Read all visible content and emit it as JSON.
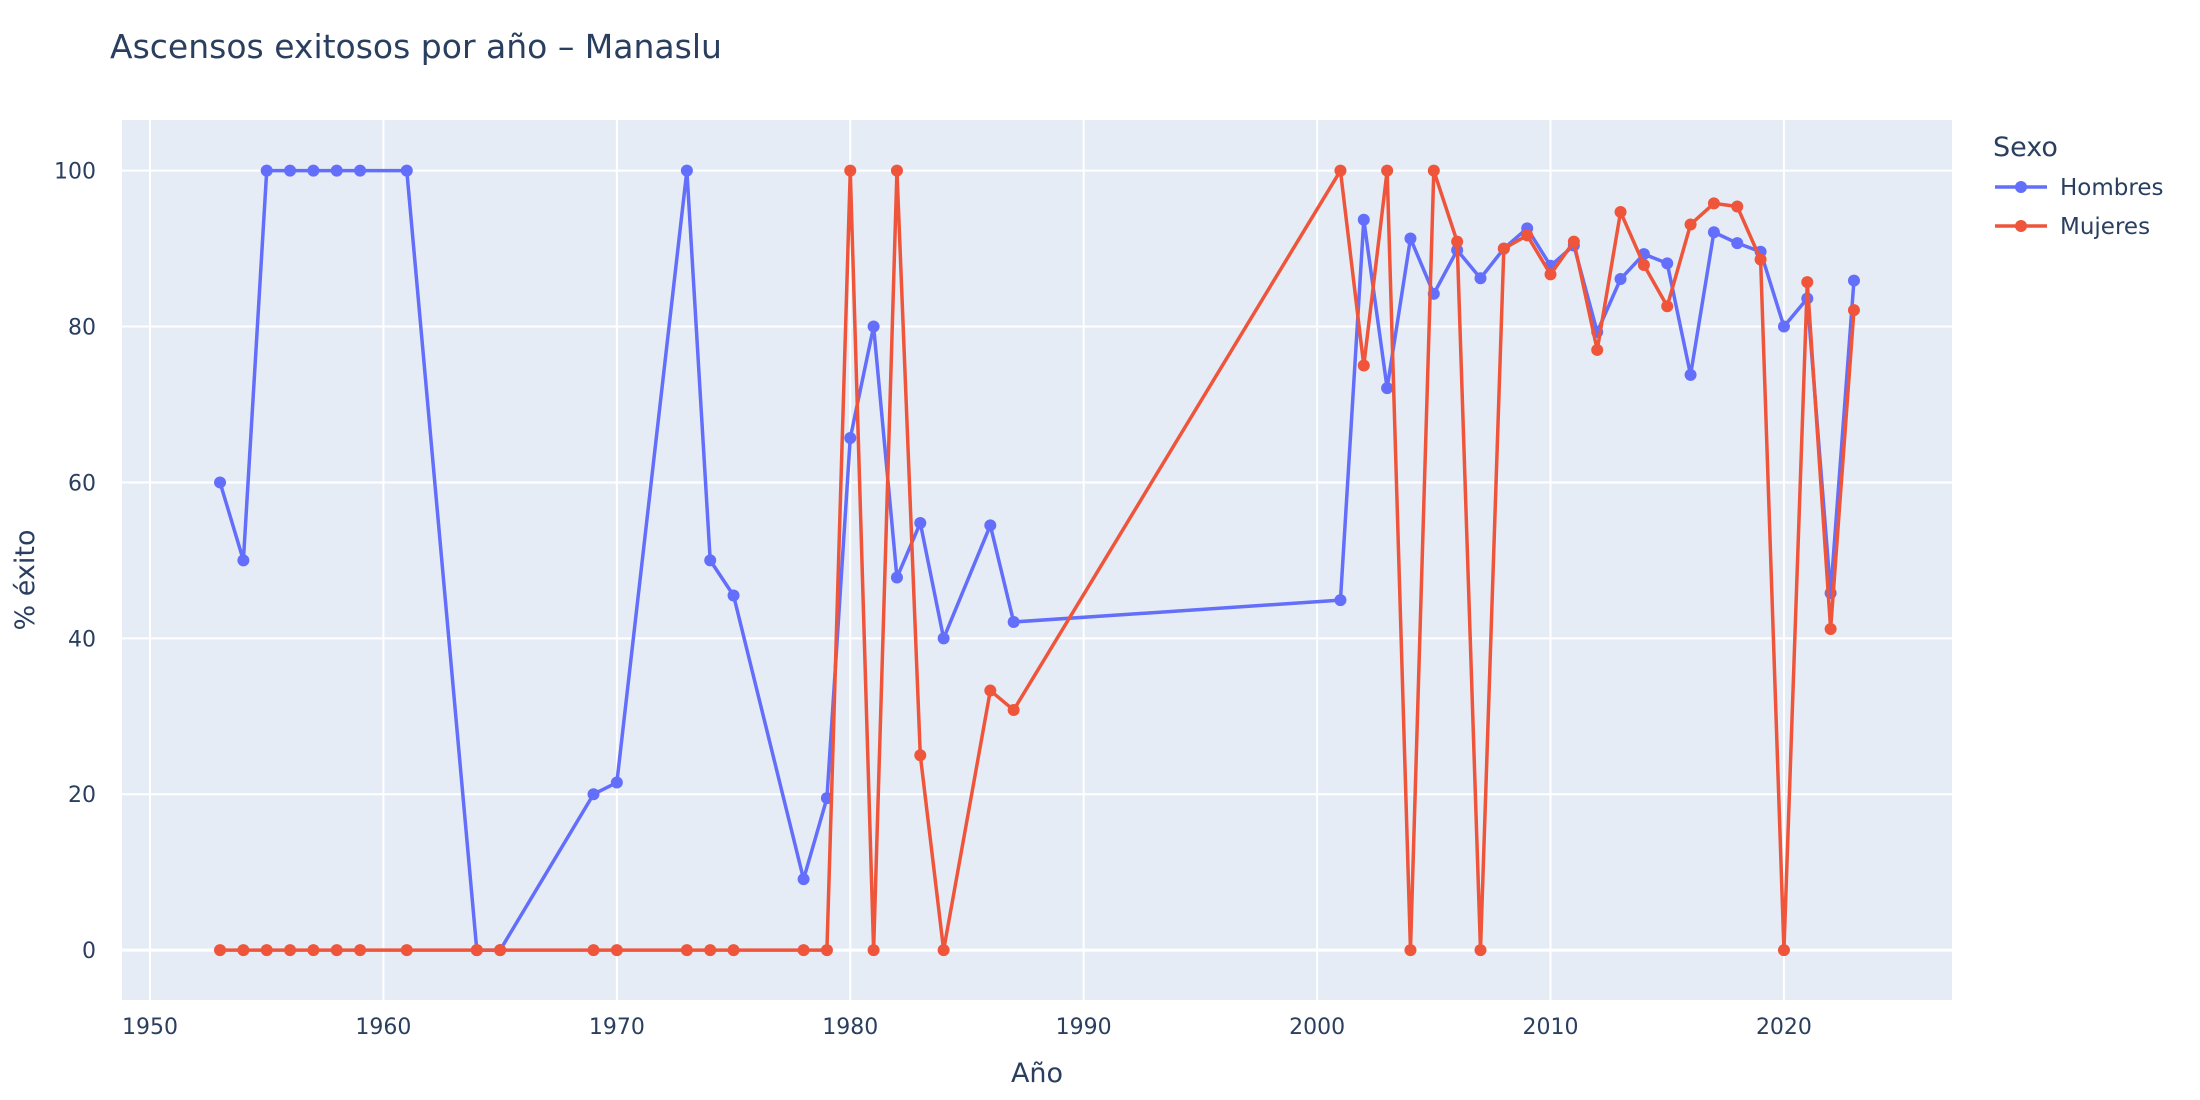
{
  "chart_data": {
    "type": "line",
    "title": "Ascensos exitosos por año – Manaslu",
    "xlabel": "Año",
    "ylabel": "% éxito",
    "xlim": [
      1948.8,
      2027.2
    ],
    "ylim": [
      -6.4,
      106.5
    ],
    "x_ticks": [
      1950,
      1960,
      1970,
      1980,
      1990,
      2000,
      2010,
      2020
    ],
    "y_ticks": [
      0,
      20,
      40,
      60,
      80,
      100
    ],
    "grid": true,
    "legend_title": "Sexo",
    "legend_position": "top-right outside plot",
    "background_color": "#E5ECF6",
    "grid_color": "#FFFFFF",
    "text_color": "#2A3F5F",
    "series": [
      {
        "name": "Hombres",
        "color": "#636EFA",
        "x": [
          1953,
          1954,
          1955,
          1956,
          1957,
          1958,
          1959,
          1961,
          1964,
          1965,
          1969,
          1970,
          1973,
          1974,
          1975,
          1978,
          1979,
          1980,
          1981,
          1982,
          1983,
          1984,
          1986,
          1987,
          2001,
          2002,
          2003,
          2004,
          2005,
          2006,
          2007,
          2008,
          2009,
          2010,
          2011,
          2012,
          2013,
          2014,
          2015,
          2016,
          2017,
          2018,
          2019,
          2020,
          2021,
          2022,
          2023
        ],
        "y": [
          60,
          50,
          100,
          100,
          100,
          100,
          100,
          100,
          0,
          0,
          20,
          21.5,
          100,
          50,
          45.5,
          9.1,
          19.5,
          65.7,
          80,
          47.8,
          54.8,
          40,
          54.5,
          42.1,
          44.9,
          93.7,
          72.1,
          91.3,
          84.2,
          89.8,
          86.2,
          90,
          92.6,
          87.8,
          90.4,
          79.3,
          86.1,
          89.3,
          88.1,
          73.8,
          92.1,
          90.7,
          89.6,
          80,
          83.6,
          45.8,
          85.9
        ]
      },
      {
        "name": "Mujeres",
        "color": "#EF553B",
        "x": [
          1953,
          1954,
          1955,
          1956,
          1957,
          1958,
          1959,
          1961,
          1964,
          1965,
          1969,
          1970,
          1973,
          1974,
          1975,
          1978,
          1979,
          1980,
          1981,
          1982,
          1983,
          1984,
          1986,
          1987,
          2001,
          2002,
          2003,
          2004,
          2005,
          2006,
          2007,
          2008,
          2009,
          2010,
          2011,
          2012,
          2013,
          2014,
          2015,
          2016,
          2017,
          2018,
          2019,
          2020,
          2021,
          2022,
          2023
        ],
        "y": [
          0,
          0,
          0,
          0,
          0,
          0,
          0,
          0,
          0,
          0,
          0,
          0,
          0,
          0,
          0,
          0,
          0,
          100,
          0,
          100,
          25,
          0,
          33.3,
          30.8,
          100,
          75,
          100,
          0,
          100,
          90.9,
          0,
          90,
          91.7,
          86.7,
          90.9,
          77,
          94.7,
          87.9,
          82.6,
          93.1,
          95.8,
          95.4,
          88.6,
          0,
          85.7,
          41.2,
          82.1
        ]
      }
    ]
  }
}
